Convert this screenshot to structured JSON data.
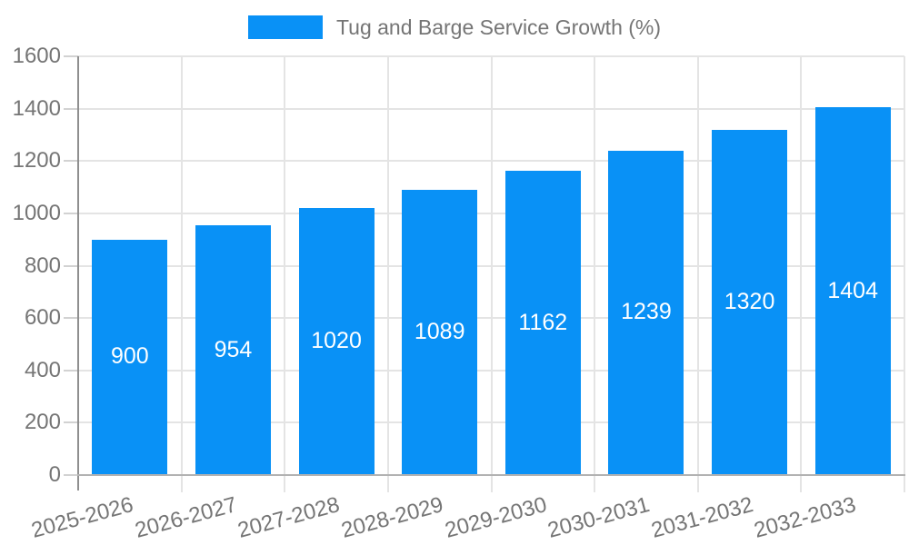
{
  "legend": {
    "label": "Tug and Barge Service Growth (%)"
  },
  "chart_data": {
    "type": "bar",
    "title": "Tug and Barge Service Growth (%)",
    "categories": [
      "2025-2026",
      "2026-2027",
      "2027-2028",
      "2028-2029",
      "2029-2030",
      "2030-2031",
      "2031-2032",
      "2032-2033"
    ],
    "values": [
      900,
      954,
      1020,
      1089,
      1162,
      1239,
      1320,
      1404
    ],
    "xlabel": "",
    "ylabel": "",
    "ylim": [
      0,
      1600
    ],
    "ytick_step": 200,
    "grid": true,
    "legend_position": "top",
    "bar_color": "#0991f6",
    "bar_label_color": "#ffffff"
  },
  "colors": {
    "background": "#ffffff",
    "grid": "#e4e4e4",
    "axis_text": "#757575",
    "y_axis_line": "#8f8f8f",
    "x_axis_line": "#b2b2b2",
    "tick": "#d2d2d2"
  }
}
